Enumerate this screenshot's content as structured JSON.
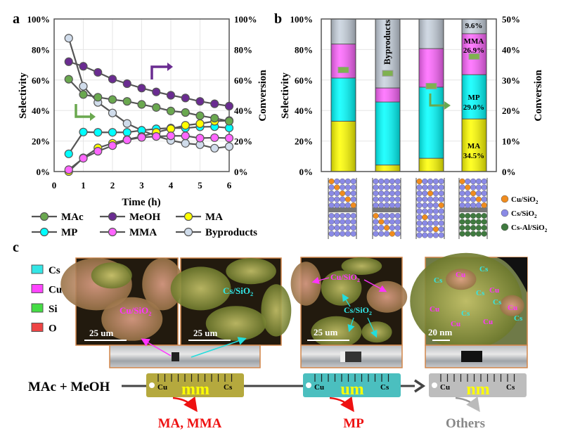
{
  "panel_labels": {
    "a": "a",
    "b": "b",
    "c": "c"
  },
  "colors": {
    "MAc": "#6aa84f",
    "MeOH": "#6a2c91",
    "MA": "#ffff00",
    "MP": "#00ffff",
    "MMA": "#ff66ff",
    "Byproducts": "#d0dceb",
    "grid": "#e6e6e6",
    "ruler_mm": "#b5a93e",
    "ruler_um": "#4bbfbf",
    "ruler_nm": "#bdbdbd",
    "cu_sphere": "#f08c1e",
    "cs_sphere": "#8a8ae6",
    "csal_sphere": "#3f7a3f"
  },
  "chart_data": [
    {
      "type": "line",
      "xlabel": "Time (h)",
      "ylabel": "Selectivity",
      "y2label": "Conversion",
      "xlim": [
        0,
        6
      ],
      "ylim": [
        0,
        100
      ],
      "y2lim": [
        0,
        100
      ],
      "xticks": [
        "0",
        "1",
        "2",
        "3",
        "4",
        "5",
        "6"
      ],
      "yticks": [
        "0%",
        "20%",
        "40%",
        "60%",
        "80%",
        "100%"
      ],
      "y2ticks": [
        "0%",
        "20%",
        "40%",
        "60%",
        "80%",
        "100%"
      ],
      "grid": true,
      "legend_position": "bottom",
      "x": [
        0.5,
        1,
        1.5,
        2,
        2.5,
        3,
        3.5,
        4,
        4.5,
        5,
        5.5,
        6
      ],
      "series": [
        {
          "name": "MAc",
          "axis": "right",
          "values": [
            60.5,
            50.5,
            48.7,
            47.2,
            46,
            44,
            42,
            39.7,
            38.7,
            36.6,
            35,
            33
          ]
        },
        {
          "name": "MeOH",
          "axis": "right",
          "values": [
            72,
            69,
            65,
            60.6,
            57.6,
            54.7,
            52.2,
            50,
            48.2,
            46,
            44.4,
            42.9
          ]
        },
        {
          "name": "MA",
          "axis": "left",
          "values": [
            0,
            9,
            15.5,
            18.5,
            21,
            23,
            25.7,
            28,
            30.3,
            31.4,
            33,
            33.4
          ]
        },
        {
          "name": "MP",
          "axis": "left",
          "values": [
            11.6,
            25.9,
            25.7,
            25.7,
            25.7,
            27,
            28,
            28.5,
            28.5,
            29.3,
            29.4,
            28.6
          ]
        },
        {
          "name": "MMA",
          "axis": "left",
          "values": [
            1.2,
            8.7,
            13.3,
            17,
            20.7,
            22.4,
            23,
            23.4,
            23.4,
            21.9,
            22.2,
            21.9
          ]
        },
        {
          "name": "Byproducts",
          "axis": "left",
          "values": [
            87.4,
            55.9,
            45.3,
            38.4,
            31.5,
            27,
            23.3,
            20.4,
            18.5,
            17.6,
            15.3,
            16.4
          ]
        }
      ]
    },
    {
      "type": "bar",
      "stacked": true,
      "ylabel": "Selectivity",
      "y2label": "Conversion",
      "ylim": [
        0,
        100
      ],
      "y2lim": [
        0,
        50
      ],
      "yticks": [
        "0%",
        "20%",
        "40%",
        "60%",
        "80%",
        "100%"
      ],
      "y2ticks": [
        "0%",
        "10%",
        "20%",
        "30%",
        "40%",
        "50%"
      ],
      "grid": true,
      "series": [
        {
          "name": "MA",
          "values": [
            33,
            4.3,
            8.7,
            34.5
          ]
        },
        {
          "name": "MP",
          "values": [
            28.3,
            41.3,
            46.6,
            29.0
          ]
        },
        {
          "name": "MMA",
          "values": [
            22.3,
            9.2,
            25.3,
            26.9
          ]
        },
        {
          "name": "Byproducts",
          "values": [
            16.4,
            45.2,
            19.4,
            9.6
          ]
        }
      ],
      "conversion": [
        33.3,
        32.2,
        28,
        37.7
      ],
      "annotations": {
        "byproducts": "Byproducts",
        "bar4_byp": "9.6%",
        "bar4_mma_name": "MMA",
        "bar4_mma_val": "26.9%",
        "bar4_mp_name": "MP",
        "bar4_mp_val": "29.0%",
        "bar4_ma_name": "MA",
        "bar4_ma_val": "34.5%"
      },
      "beds": [
        {
          "top": "Cu-Cs",
          "bottom": "Cs"
        },
        {
          "top": "Cs",
          "bottom": "Cu-Cs"
        },
        {
          "top": "Cu-Cs",
          "bottom": "Cu-Cs"
        },
        {
          "top": "Cu-Cs",
          "bottom": "Cs-Al"
        }
      ],
      "bed_legend": [
        {
          "label": "Cu/SiO",
          "sub": "2",
          "color_key": "cu_sphere"
        },
        {
          "label": "Cs/SiO",
          "sub": "2",
          "color_key": "cs_sphere"
        },
        {
          "label": "Cs-Al/SiO",
          "sub": "2",
          "color_key": "csal_sphere"
        }
      ]
    }
  ],
  "panel_c": {
    "element_legend": [
      {
        "label": "Cs",
        "color": "#33e6e6"
      },
      {
        "label": "Cu",
        "color": "#ff44ff"
      },
      {
        "label": "Si",
        "color": "#44dd44"
      },
      {
        "label": "O",
        "color": "#ee4444"
      }
    ],
    "images": [
      {
        "label": "Cu/SiO",
        "label_sub": "2",
        "scale": "25 um"
      },
      {
        "label": "Cs/SiO",
        "label_sub": "2",
        "scale": "25 um"
      },
      {
        "label_cu": "Cu/SiO",
        "label_cs": "Cs/SiO",
        "label_sub": "2",
        "scale": "25 um"
      },
      {
        "cs": "Cs",
        "cu": "Cu",
        "scale": "20 nm"
      }
    ],
    "reactants": "MAc + MeOH",
    "rulers": [
      {
        "left": "Cu",
        "right": "Cs",
        "unit": "mm",
        "product": "MA, MMA"
      },
      {
        "left": "Cu",
        "right": "Cs",
        "unit": "um",
        "product": "MP"
      },
      {
        "left": "Cu",
        "right": "Cs",
        "unit": "nm",
        "product": "Others"
      }
    ]
  }
}
